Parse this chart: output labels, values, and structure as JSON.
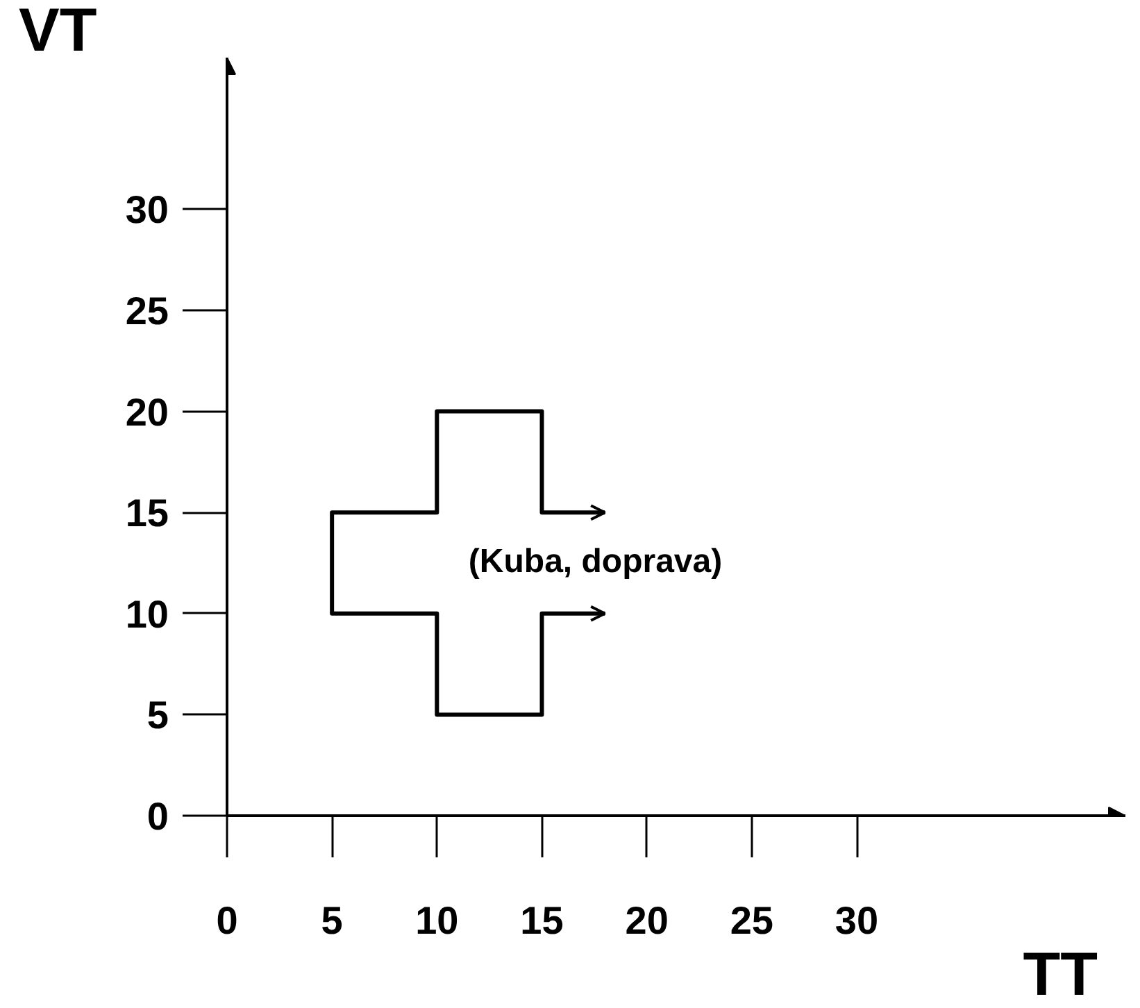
{
  "chart_data": {
    "type": "line",
    "xlabel": "TT",
    "ylabel": "VT",
    "x": [
      18,
      15,
      15,
      10,
      10,
      5,
      5,
      10,
      10,
      15,
      15,
      18
    ],
    "series": [
      {
        "color": "#000000",
        "values": [
          15,
          15,
          20,
          20,
          15,
          15,
          10,
          10,
          5,
          5,
          10,
          10
        ]
      }
    ],
    "xlim": [
      0,
      42.8
    ],
    "ylim": [
      0,
      37.5
    ],
    "xticks": [
      0,
      5,
      10,
      15,
      20,
      25,
      30
    ],
    "yticks": [
      0,
      5,
      10,
      15,
      20,
      25,
      30
    ],
    "grid": false,
    "marker": "none",
    "line_style": "solid",
    "annotations": [
      "(Kuba, doprava)"
    ]
  }
}
